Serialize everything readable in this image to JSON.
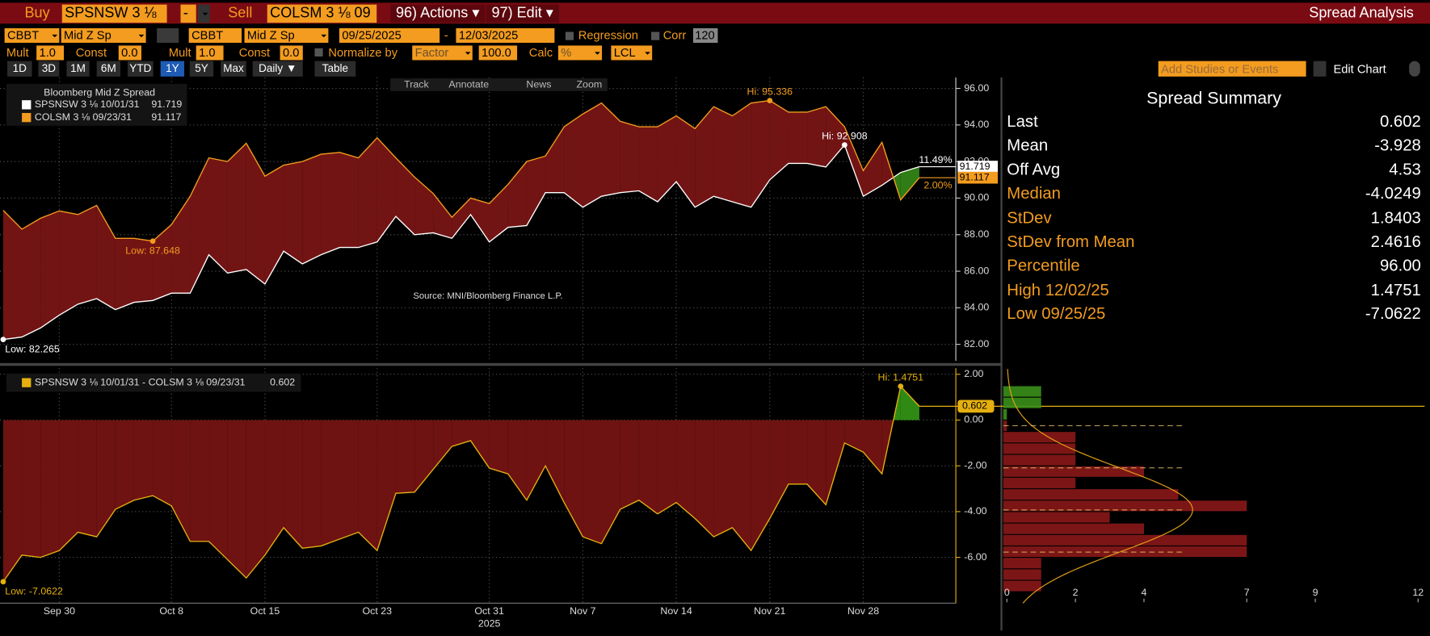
{
  "toolbar": {
    "row1": [
      "Buy",
      "SPSNSW 3 ⅛",
      "-",
      "Sell",
      "COLSM 3 ⅛ 09",
      "96) Actions ▾",
      "97) Edit ▾",
      "Spread Analysis"
    ],
    "row2": [
      "CBBT",
      "Mid Z Sp",
      "CBBT",
      "Mid Z Sp",
      "09/25/2025",
      "-",
      "12/03/2025",
      "Regression",
      "Corr",
      "120"
    ],
    "row3": [
      "Mult",
      "1.0",
      "Const",
      "0.0",
      "Mult",
      "1.0",
      "Const",
      "0.0",
      "Normalize by",
      "Factor",
      "100.0",
      "Calc",
      "%",
      "LCL"
    ],
    "row4": [
      "1D",
      "3D",
      "1M",
      "6M",
      "YTD",
      "1Y",
      "5Y",
      "Max",
      "Daily ▼",
      "Table"
    ],
    "right": [
      "Add Studies or Events",
      "Edit Chart"
    ],
    "chart_tools": [
      "Track",
      "Annotate",
      "News",
      "Zoom"
    ]
  },
  "summary": {
    "title": "Spread Summary",
    "rows": [
      {
        "label": "Last",
        "value": 0.602
      },
      {
        "label": "Mean",
        "value": -3.928
      },
      {
        "label": "Off Avg",
        "value": 4.53
      },
      {
        "label": "Median",
        "value": -4.0249
      },
      {
        "label": "StDev",
        "value": 1.8403
      },
      {
        "label": "StDev from Mean",
        "value": 2.4616
      },
      {
        "label": "Percentile",
        "value": "96.00"
      },
      {
        "label": "High 12/02/25",
        "value": 1.4751
      },
      {
        "label": "Low 09/25/25",
        "value": -7.0622
      }
    ]
  },
  "chart_data": [
    {
      "type": "line",
      "title": "Bloomberg Mid Z Spread",
      "source": "Source: MNI/Bloomberg Finance L.P.",
      "series": [
        {
          "name": "SPSNSW 3 ⅛ 10/01/31",
          "color": "#ffffff",
          "high_label": "Hi: 92.908",
          "low_label": "Low: 82.265",
          "end_label": "11.49%",
          "values": [
            82.265,
            82.4,
            82.9,
            83.6,
            84.2,
            84.5,
            83.9,
            84.3,
            84.4,
            84.8,
            84.8,
            86.9,
            85.9,
            86.1,
            85.3,
            87.1,
            86.4,
            86.9,
            87.3,
            87.3,
            87.6,
            89.0,
            88.0,
            88.1,
            87.8,
            89.1,
            87.6,
            88.4,
            88.5,
            90.3,
            90.3,
            89.5,
            90.1,
            90.3,
            90.4,
            89.8,
            90.9,
            89.5,
            90.1,
            89.8,
            89.5,
            91.0,
            91.9,
            91.9,
            91.7,
            92.908,
            90.1,
            90.7,
            91.4,
            91.719
          ]
        },
        {
          "name": "COLSM 3 ⅛ 09/23/31",
          "color": "#f39c1f",
          "high_label": "Hi: 95.336",
          "low_label": "Low: 87.648",
          "end_label": "2.00%",
          "values": [
            89.33,
            88.3,
            88.9,
            89.3,
            89.1,
            89.6,
            87.8,
            87.8,
            87.648,
            88.55,
            90.1,
            92.2,
            92.0,
            93.0,
            91.2,
            91.8,
            92.0,
            92.4,
            92.5,
            92.2,
            93.3,
            92.2,
            91.15,
            90.25,
            88.95,
            90.0,
            89.7,
            90.75,
            92.0,
            92.3,
            93.9,
            94.6,
            95.2,
            94.2,
            93.9,
            93.9,
            94.5,
            93.8,
            95.0,
            94.5,
            95.2,
            95.336,
            94.7,
            94.7,
            95.0,
            93.9,
            91.5,
            93.05,
            89.9,
            91.117
          ]
        }
      ],
      "ylim": [
        81.15,
        96.45
      ],
      "yticks": [
        {
          "value": 82,
          "label": "82.00"
        },
        {
          "value": 84,
          "label": "84.00"
        },
        {
          "value": 86,
          "label": "86.00"
        },
        {
          "value": 88,
          "label": "88.00"
        },
        {
          "value": 90,
          "label": "90.00"
        },
        {
          "value": 92,
          "label": "92.00"
        },
        {
          "value": 94,
          "label": "94.00"
        },
        {
          "value": 96,
          "label": "96.00"
        }
      ],
      "grid": true,
      "fill_colors": [
        "#731414",
        "#2f7d14"
      ]
    },
    {
      "type": "area",
      "name": "SPSNSW 3 ⅛ 10/01/31 - COLSM 3 ⅛ 09/23/31",
      "color": "#e5b00f",
      "high_label": "Hi: 1.4751",
      "low_label": "Low: -7.0622",
      "x_year": "2025",
      "categories": [
        null,
        null,
        null,
        "Sep 30",
        null,
        null,
        null,
        null,
        null,
        "Oct 8",
        null,
        null,
        null,
        null,
        "Oct 15",
        null,
        null,
        null,
        null,
        null,
        "Oct 23",
        null,
        null,
        null,
        null,
        null,
        "Oct 31",
        null,
        null,
        null,
        null,
        "Nov 7",
        null,
        null,
        null,
        null,
        "Nov 14",
        null,
        null,
        null,
        null,
        "Nov 21",
        null,
        null,
        null,
        null,
        "Nov 28",
        null,
        null,
        null
      ],
      "values": [
        -7.0622,
        -5.9,
        -6.0,
        -5.7,
        -4.9,
        -5.1,
        -3.9,
        -3.5,
        -3.3,
        -3.75,
        -5.3,
        -5.3,
        -6.1,
        -6.9,
        -5.9,
        -4.7,
        -5.6,
        -5.5,
        -5.2,
        -4.9,
        -5.7,
        -3.2,
        -3.15,
        -2.15,
        -1.15,
        -0.9,
        -2.1,
        -2.35,
        -3.5,
        -2.0,
        -3.6,
        -5.1,
        -5.4,
        -3.9,
        -3.5,
        -4.1,
        -3.6,
        -4.3,
        -5.1,
        -4.7,
        -5.7,
        -4.3,
        -2.8,
        -2.8,
        -3.7,
        -1.0,
        -1.4,
        -2.35,
        1.4751,
        0.602
      ],
      "ylim": [
        -8.0,
        2.23
      ],
      "yticks": [
        {
          "value": 2,
          "label": "2.00"
        },
        {
          "value": 0,
          "label": "0.00"
        },
        {
          "value": -2,
          "label": "-2.00"
        },
        {
          "value": -4,
          "label": "-4.00"
        },
        {
          "value": -6,
          "label": "-6.00"
        }
      ],
      "grid": true,
      "fill_colors": [
        "#6e1212",
        "#2f8a14"
      ]
    },
    {
      "type": "histogram",
      "orientation": "horizontal",
      "bins": [
        -7.5,
        -7.0,
        -6.5,
        -6.0,
        -5.5,
        -5.0,
        -4.5,
        -4.0,
        -3.5,
        -3.0,
        -2.5,
        -2.0,
        -1.5,
        -1.0,
        -0.5,
        0,
        0.5,
        1.0,
        1.5
      ],
      "counts": [
        1,
        1,
        1,
        7,
        7,
        4,
        3,
        7,
        5,
        2,
        4,
        2,
        2,
        2,
        0,
        0,
        1,
        1
      ],
      "xlim": [
        0,
        12.19
      ],
      "xticks": [
        0,
        2,
        4,
        7,
        9,
        12
      ],
      "colors": [
        "#8a1818",
        "#3a8f1a"
      ],
      "curve_color": "#e8a317"
    }
  ]
}
